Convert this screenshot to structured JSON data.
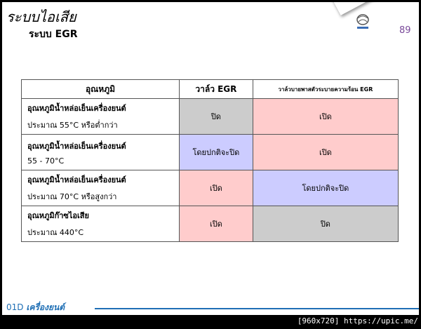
{
  "header": {
    "title": "ระบบไอเสีย",
    "subtitle": "ระบบ EGR",
    "page_number": "89",
    "logo": "mazda-logo"
  },
  "table": {
    "headers": [
      "อุณหภูมิ",
      "วาล์ว EGR",
      "วาล์วบายพาสตัวระบายความร้อน EGR"
    ],
    "rows": [
      {
        "cond_title": "อุณหภูมิน้ำหล่อเย็นเครื่องยนต์",
        "cond_detail": "ประมาณ 55°C  หรือต่ำกว่า",
        "egr": "ปิด",
        "bypass": "เปิด",
        "egr_color": "#cccccc",
        "bypass_color": "#ffcccc"
      },
      {
        "cond_title": "อุณหภูมิน้ำหล่อเย็นเครื่องยนต์",
        "cond_detail": "55 - 70°C",
        "egr": "โดยปกติจะปิด",
        "bypass": "เปิด",
        "egr_color": "#ccccff",
        "bypass_color": "#ffcccc"
      },
      {
        "cond_title": "อุณหภูมิน้ำหล่อเย็นเครื่องยนต์",
        "cond_detail": "ประมาณ 70°C  หรือสูงกว่า",
        "egr": "เปิด",
        "bypass": "โดยปกติจะปิด",
        "egr_color": "#ffcccc",
        "bypass_color": "#ccccff"
      },
      {
        "cond_title": "อุณหภูมิก๊าซไอเสีย",
        "cond_detail": "ประมาณ 440°C",
        "egr": "เปิด",
        "bypass": "ปิด",
        "egr_color": "#ffcccc",
        "bypass_color": "#cccccc"
      }
    ]
  },
  "footer": {
    "code": "01D",
    "section": "เครื่องยนต์",
    "accent": "#1f6fb5"
  },
  "watermark": "[960x720] https://upic.me/"
}
